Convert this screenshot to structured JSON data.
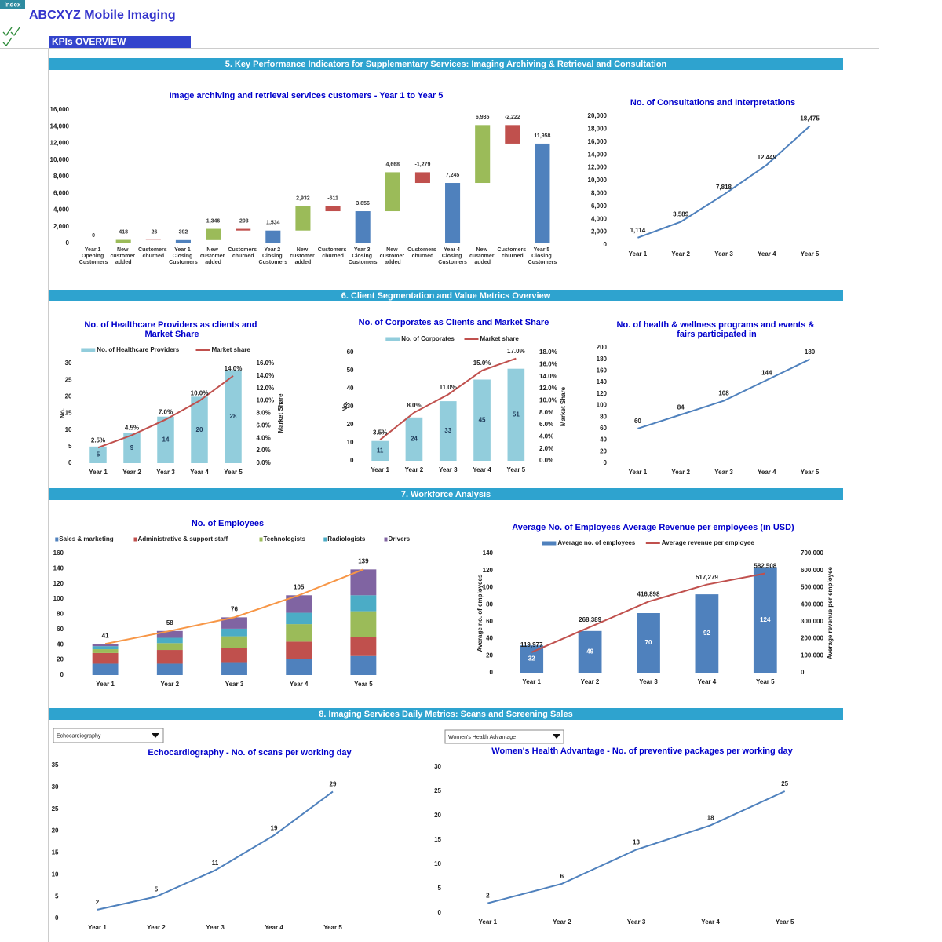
{
  "header": {
    "index_button": "Index",
    "title": "ABCXYZ Mobile Imaging",
    "subtitle": "KPIs OVERVIEW"
  },
  "sections": [
    "5. Key Performance Indicators for Supplementary Services: Imaging Archiving & Retrieval and Consultation",
    "6. Client Segmentation and Value Metrics Overview",
    "7. Workforce Analysis",
    "8. Imaging Services Daily Metrics: Scans and Screening Sales"
  ],
  "dropdowns": [
    "Echocardiography",
    "Women's Health Advantage"
  ],
  "chart_data": [
    {
      "type": "waterfall",
      "title": "Image archiving and retrieval services customers - Year 1 to Year 5",
      "categories": [
        "Year 1 Opening Customers",
        "New customer added",
        "Customers churned",
        "Year 1 Closing Customers",
        "New customer added",
        "Customers churned",
        "Year 2 Closing Customers",
        "New customer added",
        "Customers churned",
        "Year 3 Closing Customers",
        "New customer added",
        "Customers churned",
        "Year 4 Closing Customers",
        "New customer added",
        "Customers churned",
        "Year 5 Closing Customers"
      ],
      "values": [
        0,
        418,
        -26,
        392,
        1346,
        -203,
        1534,
        2932,
        -611,
        3856,
        4668,
        -1279,
        7245,
        6935,
        -2222,
        11958
      ],
      "value_labels": [
        "0",
        "418",
        "-26",
        "392",
        "1,346",
        "-203",
        "1,534",
        "2,932",
        "-611",
        "3,856",
        "4,668",
        "-1,279",
        "7,245",
        "6,935",
        "-2,222",
        "11,958"
      ],
      "increase_color": "#9bbb59",
      "decrease_color": "#c0504d",
      "total_color": "#4f81bd",
      "ylim": [
        0,
        16000
      ],
      "yticks": [
        0,
        {
          "value": 2000,
          "label": "2,000"
        },
        {
          "value": 4000,
          "label": "4,000"
        },
        {
          "value": 6000,
          "label": "6,000"
        },
        {
          "value": 8000,
          "label": "8,000"
        },
        {
          "value": 10000,
          "label": "10,000"
        },
        {
          "value": 12000,
          "label": "12,000"
        },
        {
          "value": 14000,
          "label": "14,000"
        },
        {
          "value": 16000,
          "label": "16,000"
        }
      ]
    },
    {
      "type": "line",
      "title": "No. of Consultations and Interpretations",
      "categories": [
        "Year 1",
        "Year 2",
        "Year 3",
        "Year 4",
        "Year 5"
      ],
      "values": [
        1114,
        3589,
        7818,
        12449,
        18475
      ],
      "value_labels": [
        "1,114",
        "3,589",
        "7,818",
        "12,449",
        "18,475"
      ],
      "color": "#4f81bd",
      "ylim": [
        0,
        20000
      ],
      "yticks": [
        0,
        {
          "value": 2000,
          "label": "2,000"
        },
        {
          "value": 4000,
          "label": "4,000"
        },
        {
          "value": 6000,
          "label": "6,000"
        },
        {
          "value": 8000,
          "label": "8,000"
        },
        {
          "value": 10000,
          "label": "10,000"
        },
        {
          "value": 12000,
          "label": "12,000"
        },
        {
          "value": 14000,
          "label": "14,000"
        },
        {
          "value": 16000,
          "label": "16,000"
        },
        {
          "value": 18000,
          "label": "18,000"
        },
        {
          "value": 20000,
          "label": "20,000"
        }
      ]
    },
    {
      "type": "combo",
      "title": "No. of Healthcare Providers as clients and Market Share",
      "categories": [
        "Year 1",
        "Year 2",
        "Year 3",
        "Year 4",
        "Year 5"
      ],
      "series": [
        {
          "name": "No. of Healthcare Providers",
          "color": "#92cddc",
          "values": [
            5,
            9,
            14,
            20,
            28
          ]
        },
        {
          "name": "Market share",
          "color": "#c0504d",
          "axis": "y2",
          "values": [
            2.5,
            4.5,
            7,
            10,
            14
          ],
          "value_labels": [
            "2.5%",
            "4.5%",
            "7.0%",
            "10.0%",
            "14.0%"
          ]
        }
      ],
      "ylabel": "No.",
      "y2label": "Market Share",
      "legend": "top",
      "ylim": [
        0,
        30
      ],
      "yticks": [
        0,
        5,
        10,
        15,
        20,
        25,
        30
      ],
      "y2lim": [
        0,
        16
      ],
      "y2ticks": [
        {
          "value": 0,
          "label": "0.0%"
        },
        {
          "value": 2,
          "label": "2.0%"
        },
        {
          "value": 4,
          "label": "4.0%"
        },
        {
          "value": 6,
          "label": "6.0%"
        },
        {
          "value": 8,
          "label": "8.0%"
        },
        {
          "value": 10,
          "label": "10.0%"
        },
        {
          "value": 12,
          "label": "12.0%"
        },
        {
          "value": 14,
          "label": "14.0%"
        },
        {
          "value": 16,
          "label": "16.0%"
        }
      ]
    },
    {
      "type": "combo",
      "title": "No. of Corporates as Clients and Market Share",
      "categories": [
        "Year 1",
        "Year 2",
        "Year 3",
        "Year 4",
        "Year 5"
      ],
      "series": [
        {
          "name": "No. of Corporates",
          "color": "#92cddc",
          "values": [
            11,
            24,
            33,
            45,
            51
          ]
        },
        {
          "name": "Market share",
          "color": "#c0504d",
          "axis": "y2",
          "values": [
            3.5,
            8,
            11,
            15,
            17
          ],
          "value_labels": [
            "3.5%",
            "8.0%",
            "11.0%",
            "15.0%",
            "17.0%"
          ]
        }
      ],
      "ylabel": "No.",
      "y2label": "Market Share",
      "legend": "top",
      "ylim": [
        0,
        60
      ],
      "yticks": [
        0,
        10,
        20,
        30,
        40,
        50,
        60
      ],
      "y2lim": [
        0,
        18
      ],
      "y2ticks": [
        {
          "value": 0,
          "label": "0.0%"
        },
        {
          "value": 2,
          "label": "2.0%"
        },
        {
          "value": 4,
          "label": "4.0%"
        },
        {
          "value": 6,
          "label": "6.0%"
        },
        {
          "value": 8,
          "label": "8.0%"
        },
        {
          "value": 10,
          "label": "10.0%"
        },
        {
          "value": 12,
          "label": "12.0%"
        },
        {
          "value": 14,
          "label": "14.0%"
        },
        {
          "value": 16,
          "label": "16.0%"
        },
        {
          "value": 18,
          "label": "18.0%"
        }
      ]
    },
    {
      "type": "line",
      "title": "No. of  health & wellness programs and events & fairs participated in",
      "categories": [
        "Year 1",
        "Year 2",
        "Year 3",
        "Year 4",
        "Year 5"
      ],
      "values": [
        60,
        84,
        108,
        144,
        180
      ],
      "color": "#4f81bd",
      "ylim": [
        0,
        200
      ],
      "yticks": [
        0,
        20,
        40,
        60,
        80,
        100,
        120,
        140,
        160,
        180,
        200
      ]
    },
    {
      "type": "stacked_bar",
      "title": "No. of Employees",
      "categories": [
        "Year 1",
        "Year 2",
        "Year 3",
        "Year 4",
        "Year 5"
      ],
      "series": [
        {
          "name": "Sales & marketing",
          "color": "#4f81bd",
          "values": [
            15,
            15,
            17,
            21,
            25
          ]
        },
        {
          "name": "Administrative & support staff",
          "color": "#c0504d",
          "values": [
            14,
            18,
            19,
            23,
            25
          ]
        },
        {
          "name": "Technologists",
          "color": "#9bbb59",
          "values": [
            5,
            9,
            15,
            23,
            34
          ]
        },
        {
          "name": "Radiologists",
          "color": "#4bacc6",
          "values": [
            4,
            7,
            10,
            15,
            21
          ]
        },
        {
          "name": "Drivers",
          "color": "#8064a2",
          "values": [
            3,
            9,
            15,
            23,
            34
          ]
        }
      ],
      "total": {
        "color": "#f79646",
        "values": [
          41,
          58,
          76,
          105,
          139
        ]
      },
      "legend": "top",
      "ylim": [
        0,
        160
      ],
      "yticks": [
        0,
        20,
        40,
        60,
        80,
        100,
        120,
        140,
        160
      ]
    },
    {
      "type": "combo",
      "title": "Average No. of Employees Average Revenue per employees (in USD)",
      "categories": [
        "Year 1",
        "Year 2",
        "Year 3",
        "Year 4",
        "Year 5"
      ],
      "series": [
        {
          "name": "Average no. of employees",
          "color": "#4f81bd",
          "values": [
            32,
            49,
            70,
            92,
            124
          ]
        },
        {
          "name": "Average revenue per employee",
          "color": "#c0504d",
          "axis": "y2",
          "values": [
            119977,
            268389,
            416898,
            517279,
            582508
          ],
          "value_labels": [
            "119,977",
            "268,389",
            "416,898",
            "517,279",
            "582,508"
          ]
        }
      ],
      "ylabel": "Average no. of employees",
      "y2label": "Average revenue per employee",
      "legend": "top",
      "ylim": [
        0,
        140
      ],
      "yticks": [
        0,
        20,
        40,
        60,
        80,
        100,
        120,
        140
      ],
      "y2lim": [
        0,
        700000
      ],
      "y2ticks": [
        0,
        {
          "value": 100000,
          "label": "100,000"
        },
        {
          "value": 200000,
          "label": "200,000"
        },
        {
          "value": 300000,
          "label": "300,000"
        },
        {
          "value": 400000,
          "label": "400,000"
        },
        {
          "value": 500000,
          "label": "500,000"
        },
        {
          "value": 600000,
          "label": "600,000"
        },
        {
          "value": 700000,
          "label": "700,000"
        }
      ]
    },
    {
      "type": "line",
      "title": "Echocardiography -  No. of scans per working day",
      "categories": [
        "Year 1",
        "Year 2",
        "Year 3",
        "Year 4",
        "Year 5"
      ],
      "values": [
        2,
        5,
        11,
        19,
        29
      ],
      "color": "#4f81bd",
      "ylim": [
        0,
        35
      ],
      "yticks": [
        0,
        5,
        10,
        15,
        20,
        25,
        30,
        35
      ]
    },
    {
      "type": "line",
      "title": "Women's Health Advantage -  No. of preventive packages per working day",
      "categories": [
        "Year 1",
        "Year 2",
        "Year 3",
        "Year 4",
        "Year 5"
      ],
      "values": [
        2,
        6,
        13,
        18,
        25
      ],
      "color": "#4f81bd",
      "ylim": [
        0,
        30
      ],
      "yticks": [
        0,
        5,
        10,
        15,
        20,
        25,
        30
      ]
    }
  ]
}
